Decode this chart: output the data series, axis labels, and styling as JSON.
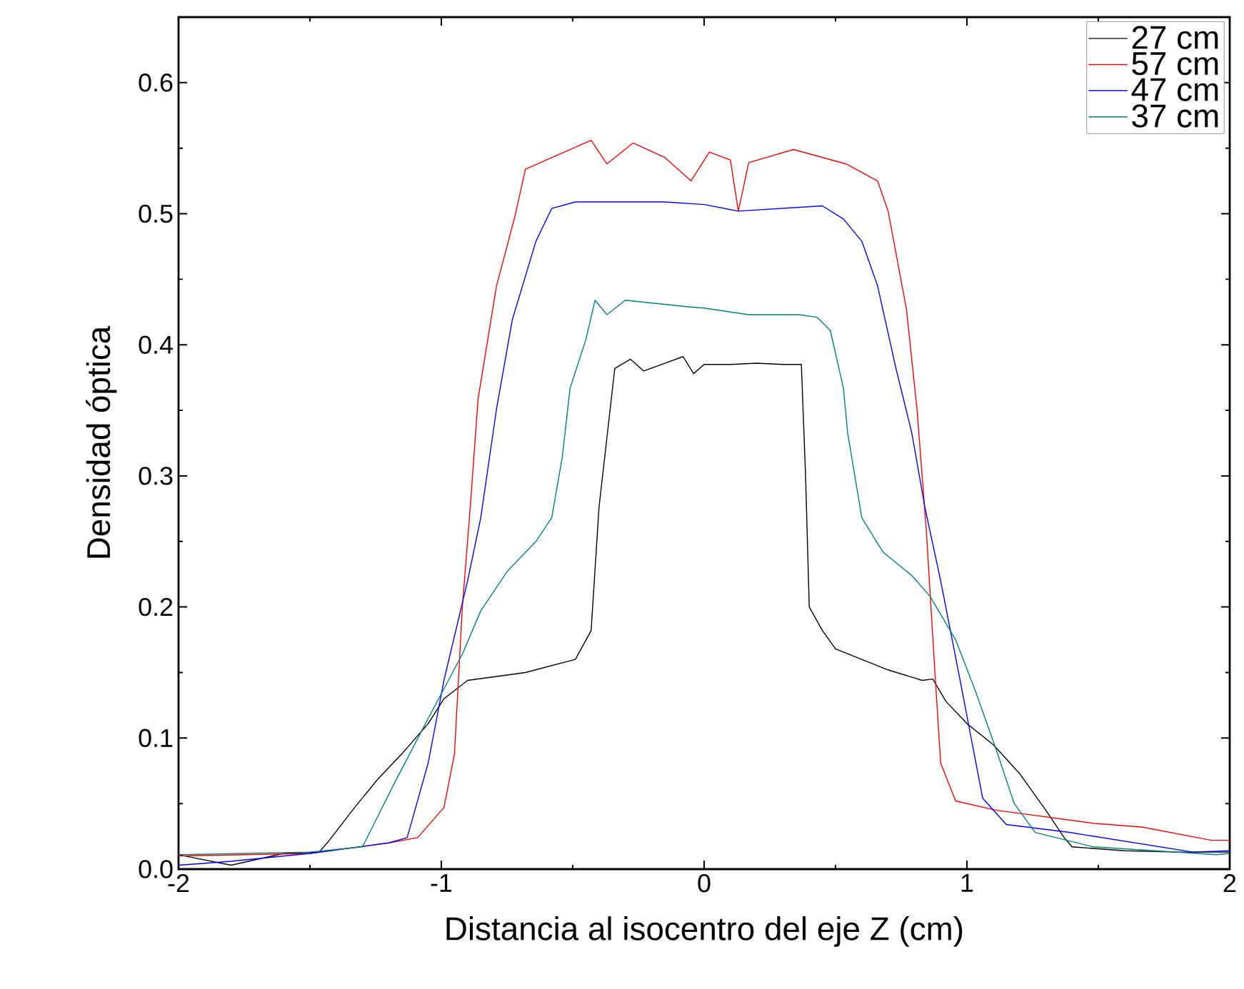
{
  "chart_data": {
    "type": "line",
    "xlabel": "Distancia al isocentro del eje Z (cm)",
    "ylabel": "Densidad óptica",
    "xlim": [
      -2,
      2
    ],
    "ylim": [
      0,
      0.65
    ],
    "xticks": [
      -2,
      -1,
      0,
      1,
      2
    ],
    "yticks": [
      {
        "value": 0,
        "label": "0.0"
      },
      0.1,
      0.2,
      0.3,
      0.4,
      0.5,
      0.6
    ],
    "legend": "top right",
    "line_style": "solid",
    "series": [
      {
        "name": "27 cm",
        "color": "#000000",
        "x": [
          -2,
          -1.8,
          -1.6,
          -1.465,
          -1.43,
          -1.33,
          -1.24,
          -1.15,
          -1.05,
          -0.99,
          -0.9,
          -0.68,
          -0.49,
          -0.43,
          -0.4,
          -0.34,
          -0.28,
          -0.23,
          -0.08,
          -0.04,
          0.0,
          0.1,
          0.2,
          0.3,
          0.37,
          0.386,
          0.4,
          0.45,
          0.5,
          0.6,
          0.7,
          0.83,
          0.87,
          0.92,
          1.0,
          1.1,
          1.2,
          1.3,
          1.37,
          1.4,
          1.6,
          1.8,
          2.0
        ],
        "values": [
          0.011,
          0.003,
          0.012,
          0.013,
          0.021,
          0.047,
          0.069,
          0.088,
          0.111,
          0.13,
          0.144,
          0.15,
          0.16,
          0.182,
          0.276,
          0.382,
          0.389,
          0.38,
          0.391,
          0.378,
          0.385,
          0.385,
          0.386,
          0.385,
          0.385,
          0.3,
          0.2,
          0.182,
          0.168,
          0.16,
          0.152,
          0.144,
          0.145,
          0.128,
          0.111,
          0.095,
          0.073,
          0.045,
          0.024,
          0.017,
          0.014,
          0.013,
          0.013
        ]
      },
      {
        "name": "57 cm",
        "color": "#ff0000",
        "x": [
          -2,
          -1.5,
          -1.2,
          -1.09,
          -0.99,
          -0.95,
          -0.92,
          -0.89,
          -0.86,
          -0.79,
          -0.72,
          -0.68,
          -0.6,
          -0.43,
          -0.37,
          -0.27,
          -0.15,
          -0.05,
          0.02,
          0.1,
          0.13,
          0.17,
          0.34,
          0.54,
          0.66,
          0.7,
          0.77,
          0.81,
          0.846,
          0.874,
          0.9,
          0.957,
          1.11,
          1.48,
          1.67,
          1.93,
          2.0
        ],
        "values": [
          0.01,
          0.012,
          0.02,
          0.024,
          0.047,
          0.088,
          0.2,
          0.276,
          0.359,
          0.445,
          0.498,
          0.534,
          0.541,
          0.556,
          0.538,
          0.554,
          0.543,
          0.525,
          0.547,
          0.541,
          0.502,
          0.539,
          0.549,
          0.538,
          0.525,
          0.502,
          0.427,
          0.351,
          0.257,
          0.164,
          0.081,
          0.052,
          0.045,
          0.035,
          0.032,
          0.022,
          0.022
        ]
      },
      {
        "name": "47 cm",
        "color": "#0000ff",
        "x": [
          -2,
          -1.8,
          -1.5,
          -1.2,
          -1.13,
          -1.05,
          -0.99,
          -0.9,
          -0.85,
          -0.79,
          -0.73,
          -0.64,
          -0.58,
          -0.49,
          -0.15,
          0.0,
          0.13,
          0.45,
          0.53,
          0.6,
          0.66,
          0.73,
          0.79,
          0.84,
          0.9,
          0.977,
          1.06,
          1.15,
          1.39,
          1.86,
          2.0
        ],
        "values": [
          0.003,
          0.006,
          0.012,
          0.02,
          0.024,
          0.081,
          0.144,
          0.22,
          0.268,
          0.351,
          0.419,
          0.479,
          0.504,
          0.509,
          0.509,
          0.507,
          0.502,
          0.506,
          0.496,
          0.479,
          0.445,
          0.382,
          0.333,
          0.276,
          0.22,
          0.141,
          0.054,
          0.034,
          0.028,
          0.013,
          0.014
        ]
      },
      {
        "name": "37 cm",
        "color": "#008080",
        "x": [
          -2,
          -1.5,
          -1.3,
          -1.18,
          -1.05,
          -0.92,
          -0.85,
          -0.75,
          -0.64,
          -0.58,
          -0.54,
          -0.51,
          -0.45,
          -0.415,
          -0.37,
          -0.3,
          -0.06,
          0.0,
          0.17,
          0.36,
          0.43,
          0.48,
          0.53,
          0.546,
          0.6,
          0.68,
          0.79,
          0.86,
          0.957,
          1.03,
          1.11,
          1.18,
          1.26,
          1.48,
          1.95,
          2.0
        ],
        "values": [
          0.011,
          0.013,
          0.017,
          0.065,
          0.115,
          0.164,
          0.197,
          0.227,
          0.25,
          0.268,
          0.314,
          0.367,
          0.404,
          0.434,
          0.423,
          0.434,
          0.429,
          0.428,
          0.423,
          0.423,
          0.421,
          0.411,
          0.367,
          0.333,
          0.268,
          0.242,
          0.224,
          0.208,
          0.175,
          0.137,
          0.092,
          0.05,
          0.028,
          0.017,
          0.011,
          0.012
        ]
      }
    ]
  }
}
